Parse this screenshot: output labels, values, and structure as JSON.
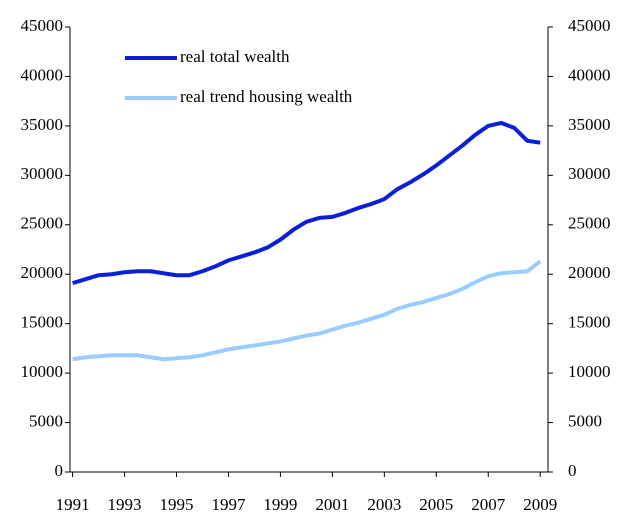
{
  "chart_data": {
    "type": "line",
    "x": [
      1991,
      1991.5,
      1992,
      1992.5,
      1993,
      1993.5,
      1994,
      1994.5,
      1995,
      1995.5,
      1996,
      1996.5,
      1997,
      1997.5,
      1998,
      1998.5,
      1999,
      1999.5,
      2000,
      2000.5,
      2001,
      2001.5,
      2002,
      2002.5,
      2003,
      2003.5,
      2004,
      2004.5,
      2005,
      2005.5,
      2006,
      2006.5,
      2007,
      2007.5,
      2008,
      2008.5,
      2009
    ],
    "series": [
      {
        "name": "real total wealth",
        "color": "#0a1fd6",
        "values": [
          19100,
          19500,
          19900,
          20000,
          20200,
          20300,
          20300,
          20100,
          19900,
          19900,
          20300,
          20800,
          21400,
          21800,
          22200,
          22700,
          23500,
          24500,
          25300,
          25700,
          25800,
          26200,
          26700,
          27100,
          27600,
          28600,
          29300,
          30100,
          31000,
          32000,
          33000,
          34100,
          35000,
          35300,
          34800,
          33500,
          33300
        ]
      },
      {
        "name": "real trend housing wealth",
        "color": "#99ccff",
        "values": [
          11400,
          11600,
          11700,
          11800,
          11800,
          11800,
          11600,
          11400,
          11500,
          11600,
          11800,
          12100,
          12400,
          12600,
          12800,
          13000,
          13200,
          13500,
          13800,
          14000,
          14400,
          14800,
          15100,
          15500,
          15900,
          16500,
          16900,
          17200,
          17600,
          18000,
          18500,
          19200,
          19800,
          20100,
          20200,
          20300,
          21300
        ]
      }
    ],
    "xlim": [
      1990.9,
      2009.3
    ],
    "xticks": [
      1991,
      1993,
      1995,
      1997,
      1999,
      2001,
      2003,
      2005,
      2007,
      2009
    ],
    "ylim": [
      0,
      45000
    ],
    "yticks": [
      0,
      5000,
      10000,
      15000,
      20000,
      25000,
      30000,
      35000,
      40000,
      45000
    ],
    "y2lim": [
      0,
      45000
    ],
    "y2ticks": [
      0,
      5000,
      10000,
      15000,
      20000,
      25000,
      30000,
      35000,
      40000,
      45000
    ],
    "legend": "upper left",
    "grid": false
  }
}
